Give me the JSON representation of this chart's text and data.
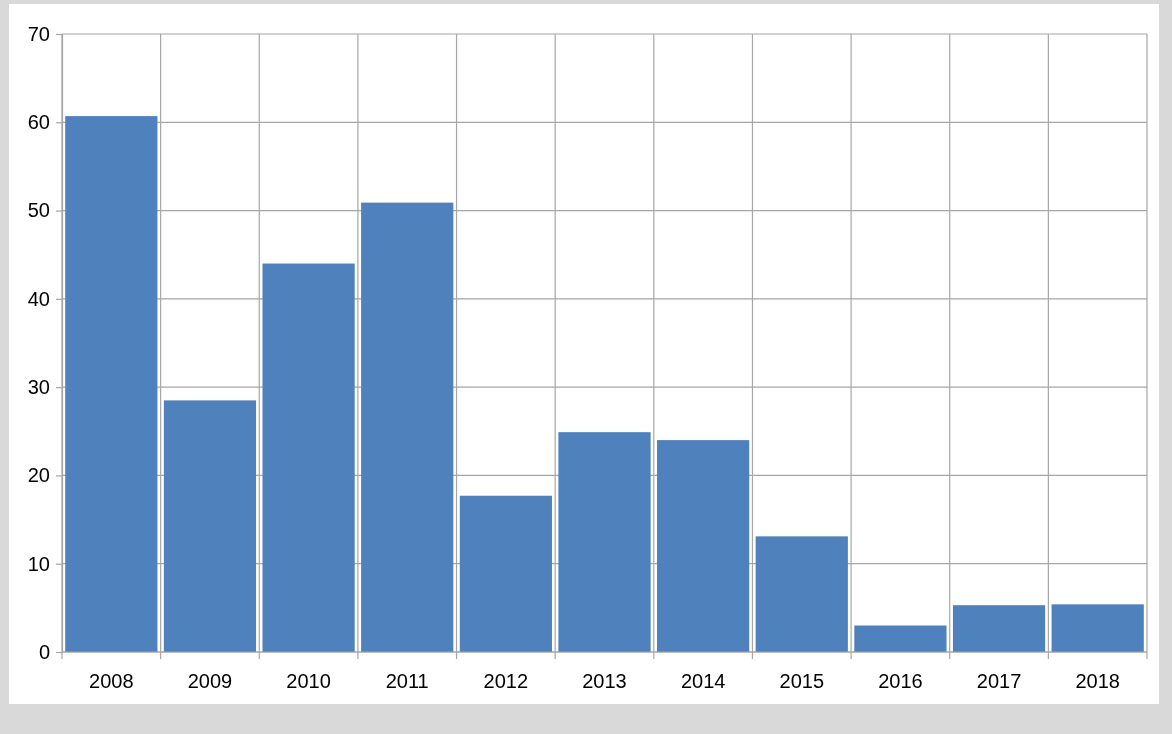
{
  "chart_data": {
    "type": "bar",
    "categories": [
      "2008",
      "2009",
      "2010",
      "2011",
      "2012",
      "2013",
      "2014",
      "2015",
      "2016",
      "2017",
      "2018"
    ],
    "values": [
      60.7,
      28.5,
      44.0,
      50.9,
      17.7,
      24.9,
      24.0,
      13.1,
      3.0,
      5.3,
      5.4
    ],
    "color": "#4f81bd",
    "ylim": [
      0,
      70
    ],
    "yticks": [
      0,
      10,
      20,
      30,
      40,
      50,
      60,
      70
    ],
    "grid": true
  }
}
